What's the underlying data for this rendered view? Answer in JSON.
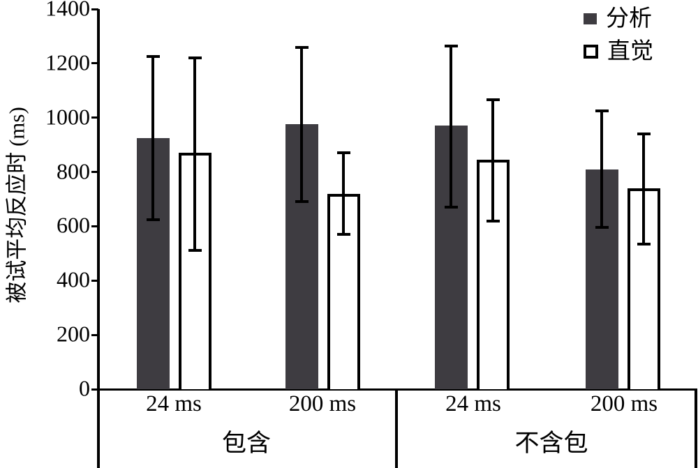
{
  "chart_data": {
    "type": "bar",
    "title": "",
    "ylabel": "被试平均反应时 (ms)",
    "xlabel": "",
    "ylim": [
      0,
      1400
    ],
    "yticks": [
      "0",
      "200",
      "400",
      "600",
      "800",
      "1000",
      "1200",
      "1400"
    ],
    "grid": false,
    "legend_position": "top-right",
    "error_bars": true,
    "categories": [
      "24 ms",
      "200 ms",
      "24 ms",
      "200 ms"
    ],
    "group_labels": [
      {
        "label": "包含",
        "spans_categories": [
          0,
          1
        ]
      },
      {
        "label": "不含包",
        "spans_categories": [
          2,
          3
        ]
      }
    ],
    "series": [
      {
        "name": "分析",
        "key": "analysis",
        "style": "filled",
        "fill": "#3e3c41",
        "border": "#3e3c41",
        "values": [
          925,
          975,
          970,
          810
        ],
        "err_low": [
          625,
          690,
          670,
          595
        ],
        "err_high": [
          1225,
          1260,
          1265,
          1025
        ]
      },
      {
        "name": "直觉",
        "key": "intuition",
        "style": "outline",
        "fill": "#ffffff",
        "border": "#000000",
        "values": [
          870,
          720,
          845,
          740
        ],
        "err_low": [
          510,
          570,
          620,
          535
        ],
        "err_high": [
          1220,
          870,
          1065,
          940
        ]
      }
    ],
    "colors": {
      "axis": "#000000",
      "error_bar": "#000000",
      "bar_filled": "#3e3c41",
      "bar_outline_fill": "#ffffff",
      "bar_outline_border": "#000000"
    }
  }
}
